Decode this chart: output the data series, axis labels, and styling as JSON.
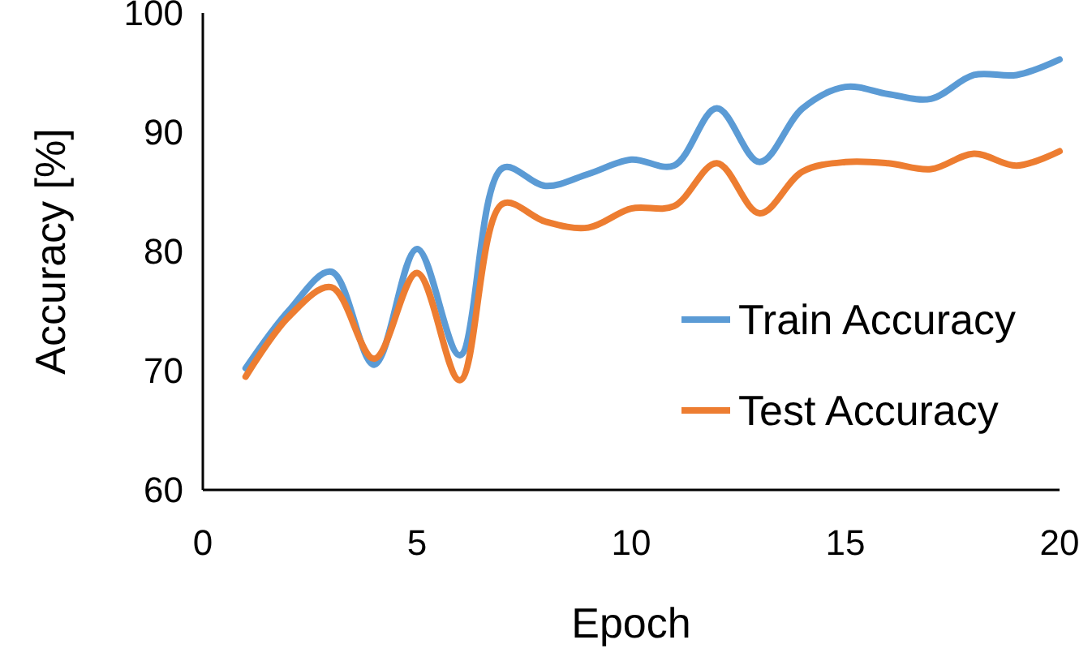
{
  "chart_data": {
    "type": "line",
    "xlabel": "Epoch",
    "ylabel": "Accuracy [%]",
    "x": [
      1,
      2,
      3,
      4,
      5,
      6,
      7,
      8,
      9,
      10,
      11,
      12,
      13,
      14,
      15,
      16,
      17,
      18,
      19,
      20
    ],
    "xlim": [
      0,
      20
    ],
    "xticks": [
      0,
      5,
      10,
      15,
      20
    ],
    "ylim": [
      60,
      100
    ],
    "yticks": [
      60,
      70,
      80,
      90,
      100
    ],
    "grid": false,
    "legend": "right",
    "marker": "none",
    "line_style": "solid",
    "series": [
      {
        "name": "Train Accuracy",
        "color": "#5b9bd5",
        "values": [
          70.2,
          75,
          78.3,
          70.5,
          80.2,
          71.3,
          87,
          85.5,
          86.5,
          87.7,
          87.2,
          92,
          87.5,
          92,
          93.8,
          93.2,
          92.8,
          94.8,
          94.8,
          96.1
        ]
      },
      {
        "name": "Test Accuracy",
        "color": "#ed7d31",
        "values": [
          69.5,
          74.5,
          77,
          71,
          78.2,
          69.2,
          84,
          82.5,
          82,
          83.6,
          83.8,
          87.4,
          83.2,
          86.7,
          87.5,
          87.4,
          86.9,
          88.2,
          87.2,
          88.4
        ]
      }
    ]
  }
}
